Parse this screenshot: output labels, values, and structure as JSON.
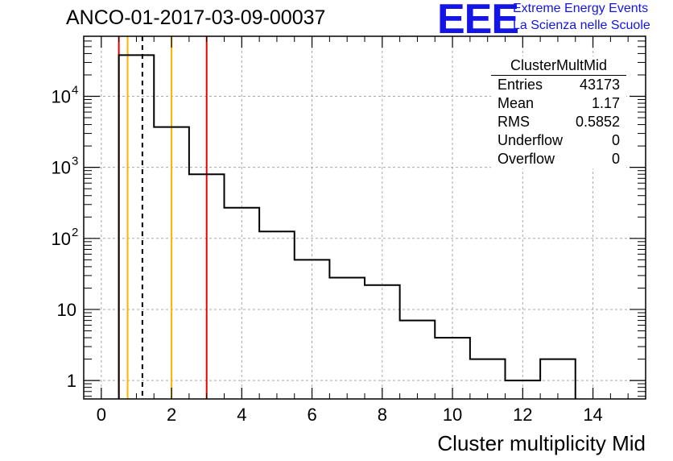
{
  "chart_data": {
    "type": "histogram",
    "title": "ANCO-01-2017-03-09-00037",
    "xlabel": "Cluster multiplicity Mid",
    "ylabel": "",
    "xlim": [
      -0.5,
      15.5
    ],
    "ylim": [
      0.55,
      70000
    ],
    "yscale": "log",
    "grid": true,
    "x_ticks": [
      0,
      2,
      4,
      6,
      8,
      10,
      12,
      14
    ],
    "y_ticks": [
      {
        "value": 1,
        "label": "1"
      },
      {
        "value": 10,
        "label": "10"
      },
      {
        "value": 100,
        "label": "10",
        "exp": "2"
      },
      {
        "value": 1000,
        "label": "10",
        "exp": "3"
      },
      {
        "value": 10000,
        "label": "10",
        "exp": "4"
      }
    ],
    "bins": {
      "edges": [
        0.5,
        1.5,
        2.5,
        3.5,
        4.5,
        5.5,
        6.5,
        7.5,
        8.5,
        9.5,
        10.5,
        11.5,
        12.5,
        13.5
      ],
      "counts": [
        38000,
        3700,
        800,
        270,
        125,
        50,
        28,
        22,
        7,
        4,
        2,
        1,
        2
      ]
    },
    "vertical_lines": [
      {
        "name": "red-line-low",
        "x": 0.5,
        "color": "#e60000",
        "dash": false
      },
      {
        "name": "orange-line-low",
        "x": 0.75,
        "color": "#ffb300",
        "dash": false
      },
      {
        "name": "mean-dashed-line",
        "x": 1.17,
        "color": "#000000",
        "dash": true
      },
      {
        "name": "orange-line-high",
        "x": 2.0,
        "color": "#ffb300",
        "dash": false
      },
      {
        "name": "red-line-high",
        "x": 3.0,
        "color": "#e60000",
        "dash": false
      }
    ]
  },
  "header": {
    "logo_text": "EEE",
    "subtitle_line1": "Extreme Energy Events",
    "subtitle_line2": "La Scienza nelle Scuole"
  },
  "stats_box": {
    "title": "ClusterMultMid",
    "rows": [
      {
        "label": "Entries",
        "value": "43173"
      },
      {
        "label": "Mean",
        "value": "1.17"
      },
      {
        "label": "RMS",
        "value": "0.5852"
      },
      {
        "label": "Underflow",
        "value": "0"
      },
      {
        "label": "Overflow",
        "value": "0"
      }
    ]
  }
}
